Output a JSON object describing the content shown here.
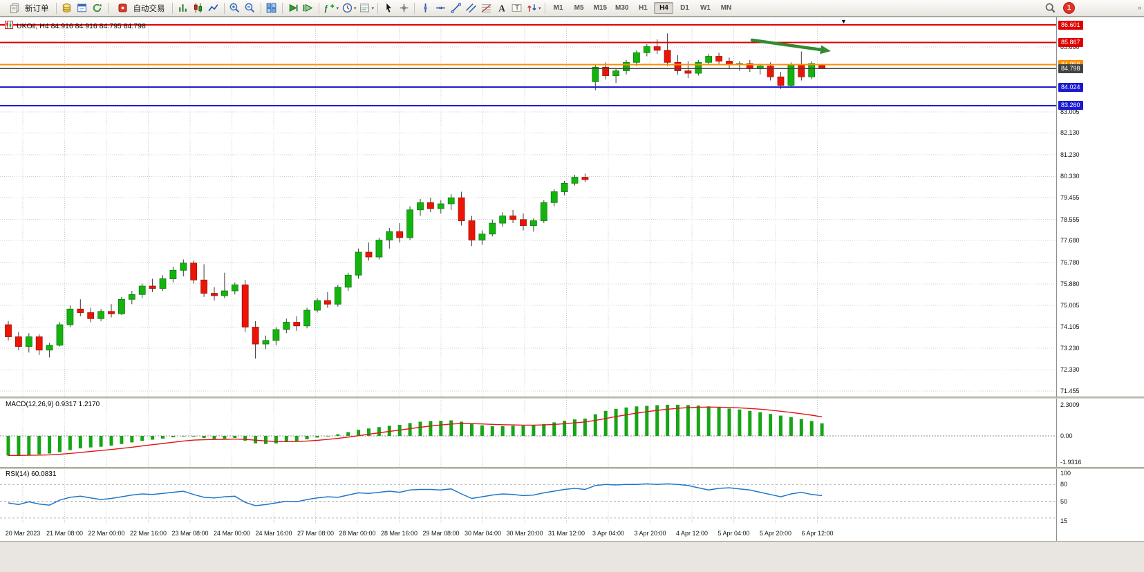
{
  "toolbar": {
    "new_order_label": "新订单",
    "autotrading_label": "自动交易",
    "notification_count": "1",
    "overflow_chevron": "»",
    "icons_a": [
      {
        "name": "market-watch-icon",
        "type": "coins"
      },
      {
        "name": "data-window-icon",
        "type": "win"
      },
      {
        "name": "navigator-icon",
        "type": "refresh"
      }
    ],
    "icons_b": [
      {
        "name": "bar-chart-icon",
        "type": "bars"
      },
      {
        "name": "candlestick-chart-icon",
        "type": "candles"
      },
      {
        "name": "line-chart-icon",
        "type": "linechart"
      },
      {
        "sep": true
      },
      {
        "name": "zoom-in-icon",
        "type": "zoomin"
      },
      {
        "name": "zoom-out-icon",
        "type": "zoomout"
      },
      {
        "sep": true
      },
      {
        "name": "tile-windows-icon",
        "type": "grid"
      },
      {
        "sep": true
      },
      {
        "name": "auto-scroll-icon",
        "type": "play"
      },
      {
        "name": "chart-shift-icon",
        "type": "shift"
      },
      {
        "sep": true
      },
      {
        "name": "indicators-icon",
        "type": "fxplus",
        "caret": true
      },
      {
        "name": "periods-icon",
        "type": "clock",
        "caret": true
      },
      {
        "name": "templates-icon",
        "type": "template",
        "caret": true
      },
      {
        "sep": true
      },
      {
        "name": "cursor-icon",
        "type": "cursor"
      },
      {
        "name": "crosshair-icon",
        "type": "cross"
      },
      {
        "sep": true
      },
      {
        "name": "vertical-line-icon",
        "type": "vline"
      },
      {
        "name": "horizontal-line-icon",
        "type": "hline"
      },
      {
        "name": "trendline-icon",
        "type": "tline"
      },
      {
        "name": "equidistant-channel-icon",
        "type": "channel"
      },
      {
        "name": "fibonacci-icon",
        "type": "fibo"
      },
      {
        "name": "text-icon",
        "type": "textA"
      },
      {
        "name": "text-label-icon",
        "type": "labelT"
      },
      {
        "name": "arrows-icon",
        "type": "arrows",
        "caret": true
      },
      {
        "sep": true
      }
    ],
    "timeframes": [
      "M1",
      "M5",
      "M15",
      "M30",
      "H1",
      "H4",
      "D1",
      "W1",
      "MN"
    ],
    "active_timeframe": "H4"
  },
  "chart": {
    "title": "UKOil, H4  84.916 84.916 84.795 84.798",
    "shift_marker": "▼",
    "levels": [
      {
        "label": "86.601",
        "price": 86.601,
        "color": "#e00000"
      },
      {
        "label": "85.867",
        "price": 85.867,
        "color": "#e00000"
      },
      {
        "label": "84.958",
        "price": 84.958,
        "color": "#ff8c00"
      },
      {
        "label": "84.798",
        "price": 84.798,
        "color": "#424242",
        "current": true
      },
      {
        "label": "84.024",
        "price": 84.024,
        "color": "#1a1ad2"
      },
      {
        "label": "83.260",
        "price": 83.26,
        "color": "#1a1ad2"
      }
    ],
    "price_ticks": [
      "85.680",
      "83.005",
      "82.130",
      "81.230",
      "80.330",
      "79.455",
      "78.555",
      "77.680",
      "76.780",
      "75.880",
      "75.005",
      "74.105",
      "73.230",
      "72.330",
      "71.455"
    ],
    "annotation_arrow": {
      "color": "#338a33"
    }
  },
  "chart_data": {
    "type": "candlestick",
    "symbol": "UKOil",
    "period": "H4",
    "last_ohlc": "84.916 84.916 84.795 84.798",
    "time_labels": [
      "20 Mar 2023",
      "21 Mar 08:00",
      "22 Mar 00:00",
      "22 Mar 16:00",
      "23 Mar 08:00",
      "24 Mar 00:00",
      "24 Mar 16:00",
      "27 Mar 08:00",
      "28 Mar 00:00",
      "28 Mar 16:00",
      "29 Mar 08:00",
      "30 Mar 04:00",
      "30 Mar 20:00",
      "31 Mar 12:00",
      "3 Apr 04:00",
      "3 Apr 20:00",
      "4 Apr 12:00",
      "5 Apr 04:00",
      "5 Apr 20:00",
      "6 Apr 12:00"
    ],
    "candles": [
      [
        74.2,
        74.35,
        73.55,
        73.7
      ],
      [
        73.7,
        73.9,
        73.15,
        73.3
      ],
      [
        73.3,
        73.85,
        73.05,
        73.7
      ],
      [
        73.7,
        73.8,
        72.95,
        73.15
      ],
      [
        73.15,
        73.45,
        72.85,
        73.35
      ],
      [
        73.35,
        74.3,
        73.3,
        74.2
      ],
      [
        74.2,
        75.0,
        74.1,
        74.85
      ],
      [
        74.85,
        75.25,
        74.55,
        74.7
      ],
      [
        74.7,
        74.9,
        74.3,
        74.45
      ],
      [
        74.45,
        74.85,
        74.35,
        74.75
      ],
      [
        74.75,
        75.05,
        74.5,
        74.65
      ],
      [
        74.65,
        75.35,
        74.6,
        75.25
      ],
      [
        75.25,
        75.6,
        75.05,
        75.45
      ],
      [
        75.45,
        75.9,
        75.3,
        75.8
      ],
      [
        75.8,
        76.1,
        75.55,
        75.7
      ],
      [
        75.7,
        76.25,
        75.6,
        76.1
      ],
      [
        76.1,
        76.6,
        75.95,
        76.45
      ],
      [
        76.45,
        76.9,
        76.2,
        76.75
      ],
      [
        76.75,
        76.85,
        75.9,
        76.05
      ],
      [
        76.05,
        76.7,
        75.35,
        75.5
      ],
      [
        75.5,
        75.75,
        75.2,
        75.4
      ],
      [
        75.4,
        76.35,
        75.3,
        75.6
      ],
      [
        75.6,
        75.95,
        75.45,
        75.85
      ],
      [
        75.85,
        76.05,
        73.9,
        74.1
      ],
      [
        74.1,
        74.35,
        72.8,
        73.4
      ],
      [
        73.4,
        73.75,
        73.2,
        73.55
      ],
      [
        73.55,
        74.1,
        73.35,
        74.0
      ],
      [
        74.0,
        74.45,
        73.85,
        74.3
      ],
      [
        74.3,
        74.55,
        73.95,
        74.15
      ],
      [
        74.15,
        74.9,
        74.05,
        74.8
      ],
      [
        74.8,
        75.3,
        74.7,
        75.2
      ],
      [
        75.2,
        75.55,
        74.9,
        75.05
      ],
      [
        75.05,
        75.85,
        74.95,
        75.75
      ],
      [
        75.75,
        76.35,
        75.6,
        76.25
      ],
      [
        76.25,
        77.35,
        76.1,
        77.2
      ],
      [
        77.2,
        77.6,
        76.85,
        77.0
      ],
      [
        77.0,
        77.8,
        76.9,
        77.7
      ],
      [
        77.7,
        78.2,
        77.35,
        78.05
      ],
      [
        78.05,
        78.4,
        77.6,
        77.8
      ],
      [
        77.8,
        79.1,
        77.7,
        78.95
      ],
      [
        78.95,
        79.4,
        78.7,
        79.25
      ],
      [
        79.25,
        79.45,
        78.85,
        79.0
      ],
      [
        79.0,
        79.35,
        78.8,
        79.2
      ],
      [
        79.2,
        79.6,
        78.95,
        79.45
      ],
      [
        79.45,
        79.7,
        78.3,
        78.5
      ],
      [
        78.5,
        78.7,
        77.45,
        77.7
      ],
      [
        77.7,
        78.1,
        77.5,
        77.95
      ],
      [
        77.95,
        78.55,
        77.85,
        78.4
      ],
      [
        78.4,
        78.85,
        78.25,
        78.7
      ],
      [
        78.7,
        78.95,
        78.4,
        78.55
      ],
      [
        78.55,
        78.8,
        78.1,
        78.3
      ],
      [
        78.3,
        78.6,
        78.05,
        78.5
      ],
      [
        78.5,
        79.35,
        78.4,
        79.25
      ],
      [
        79.25,
        79.8,
        79.1,
        79.7
      ],
      [
        79.7,
        80.15,
        79.55,
        80.05
      ],
      [
        80.05,
        80.4,
        79.95,
        80.3
      ],
      [
        80.3,
        80.45,
        80.1,
        80.2
      ],
      [
        84.25,
        84.95,
        83.9,
        84.85
      ],
      [
        84.85,
        85.05,
        84.35,
        84.5
      ],
      [
        84.5,
        84.8,
        84.2,
        84.7
      ],
      [
        84.7,
        85.15,
        84.55,
        85.05
      ],
      [
        85.05,
        85.55,
        84.9,
        85.45
      ],
      [
        85.45,
        85.8,
        85.3,
        85.7
      ],
      [
        85.7,
        86.0,
        85.4,
        85.55
      ],
      [
        85.55,
        86.25,
        84.9,
        85.05
      ],
      [
        85.05,
        85.35,
        84.55,
        84.7
      ],
      [
        84.7,
        85.1,
        84.4,
        84.6
      ],
      [
        84.6,
        85.15,
        84.5,
        85.05
      ],
      [
        85.05,
        85.4,
        84.95,
        85.3
      ],
      [
        85.3,
        85.45,
        85.0,
        85.1
      ],
      [
        85.1,
        85.25,
        84.8,
        84.95
      ],
      [
        84.95,
        85.1,
        84.7,
        85.0
      ],
      [
        85.0,
        85.15,
        84.65,
        84.8
      ],
      [
        84.8,
        85.0,
        84.55,
        84.9
      ],
      [
        84.9,
        85.05,
        84.3,
        84.45
      ],
      [
        84.45,
        84.65,
        83.95,
        84.1
      ],
      [
        84.1,
        85.05,
        84.0,
        84.95
      ],
      [
        84.95,
        85.5,
        84.3,
        84.45
      ],
      [
        84.45,
        85.1,
        84.35,
        85.0
      ],
      [
        84.916,
        84.916,
        84.795,
        84.798
      ]
    ],
    "macd": {
      "label": "MACD(12,26,9) 0.9317 1.2170",
      "scale": [
        "2.3009",
        "0.00",
        "-1.9316"
      ],
      "histogram": [
        -1.45,
        -1.42,
        -1.4,
        -1.36,
        -1.3,
        -1.2,
        -1.05,
        -0.92,
        -0.85,
        -0.8,
        -0.72,
        -0.6,
        -0.48,
        -0.36,
        -0.28,
        -0.2,
        -0.1,
        -0.02,
        -0.05,
        -0.15,
        -0.22,
        -0.2,
        -0.15,
        -0.35,
        -0.55,
        -0.6,
        -0.55,
        -0.45,
        -0.38,
        -0.25,
        -0.12,
        0.0,
        0.12,
        0.28,
        0.45,
        0.55,
        0.65,
        0.75,
        0.82,
        0.95,
        1.05,
        1.1,
        1.12,
        1.15,
        1.05,
        0.9,
        0.78,
        0.72,
        0.72,
        0.75,
        0.75,
        0.78,
        0.88,
        1.0,
        1.12,
        1.22,
        1.28,
        1.6,
        1.85,
        2.0,
        2.1,
        2.18,
        2.22,
        2.27,
        2.3,
        2.3,
        2.28,
        2.24,
        2.18,
        2.1,
        2.02,
        1.95,
        1.85,
        1.75,
        1.62,
        1.5,
        1.38,
        1.25,
        1.1,
        0.9317
      ]
    },
    "rsi": {
      "label": "RSI(14) 60.0831",
      "scale": [
        "100",
        "80",
        "50",
        "15"
      ],
      "levels": [
        80,
        50,
        20
      ],
      "values": [
        47,
        44,
        49,
        45,
        43,
        52,
        57,
        59,
        56,
        53,
        55,
        58,
        61,
        63,
        62,
        64,
        66,
        68,
        62,
        57,
        56,
        58,
        59,
        48,
        42,
        44,
        47,
        50,
        49,
        53,
        56,
        58,
        57,
        61,
        65,
        64,
        66,
        68,
        66,
        70,
        71,
        71,
        70,
        72,
        63,
        55,
        58,
        61,
        63,
        62,
        60,
        61,
        65,
        68,
        71,
        73,
        71,
        78,
        80,
        79,
        80,
        80,
        81,
        80,
        81,
        80,
        78,
        74,
        70,
        73,
        74,
        72,
        70,
        66,
        62,
        58,
        63,
        66,
        62,
        60.08
      ]
    }
  },
  "colors": {
    "bull": "#14b40e",
    "bull_border": "#0a7d0a",
    "bear": "#ec1505",
    "bear_border": "#a30f04",
    "wick": "#3a3a3a",
    "macd_hist": "#17a517",
    "macd_signal": "#e01515",
    "rsi_line": "#1f76c8",
    "grid": "#cfcfcf"
  }
}
